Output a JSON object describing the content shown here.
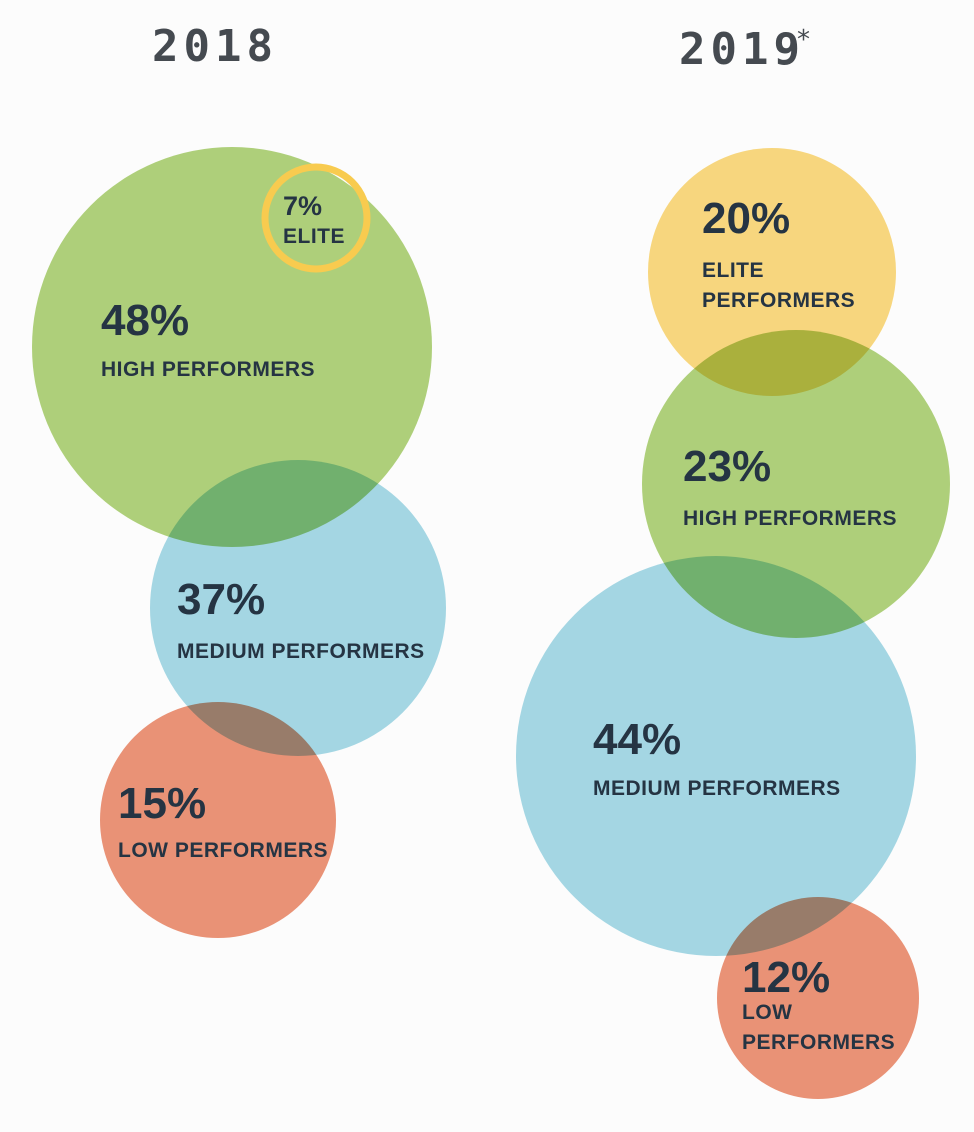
{
  "chart_data": {
    "type": "bubble",
    "colors": {
      "elite": "#f8cb4f",
      "high": "#91c148",
      "medium": "#83cadd",
      "low": "#e56b43",
      "text": "#253443",
      "year": "#454a50"
    },
    "groups": [
      {
        "year": "2018",
        "asterisk": "",
        "segments": [
          {
            "key": "high",
            "value": 48,
            "label": "48%",
            "name": [
              "HIGH PERFORMERS"
            ]
          },
          {
            "key": "medium",
            "value": 37,
            "label": "37%",
            "name": [
              "MEDIUM PERFORMERS"
            ]
          },
          {
            "key": "low",
            "value": 15,
            "label": "15%",
            "name": [
              "LOW PERFORMERS"
            ]
          },
          {
            "key": "elite",
            "value": 7,
            "label": "7%",
            "name": [
              "ELITE"
            ]
          }
        ]
      },
      {
        "year": "2019",
        "asterisk": "*",
        "segments": [
          {
            "key": "elite",
            "value": 20,
            "label": "20%",
            "name": [
              "ELITE",
              "PERFORMERS"
            ]
          },
          {
            "key": "high",
            "value": 23,
            "label": "23%",
            "name": [
              "HIGH PERFORMERS"
            ]
          },
          {
            "key": "medium",
            "value": 44,
            "label": "44%",
            "name": [
              "MEDIUM PERFORMERS"
            ]
          },
          {
            "key": "low",
            "value": 12,
            "label": "12%",
            "name": [
              "LOW",
              "PERFORMERS"
            ]
          }
        ]
      }
    ]
  }
}
